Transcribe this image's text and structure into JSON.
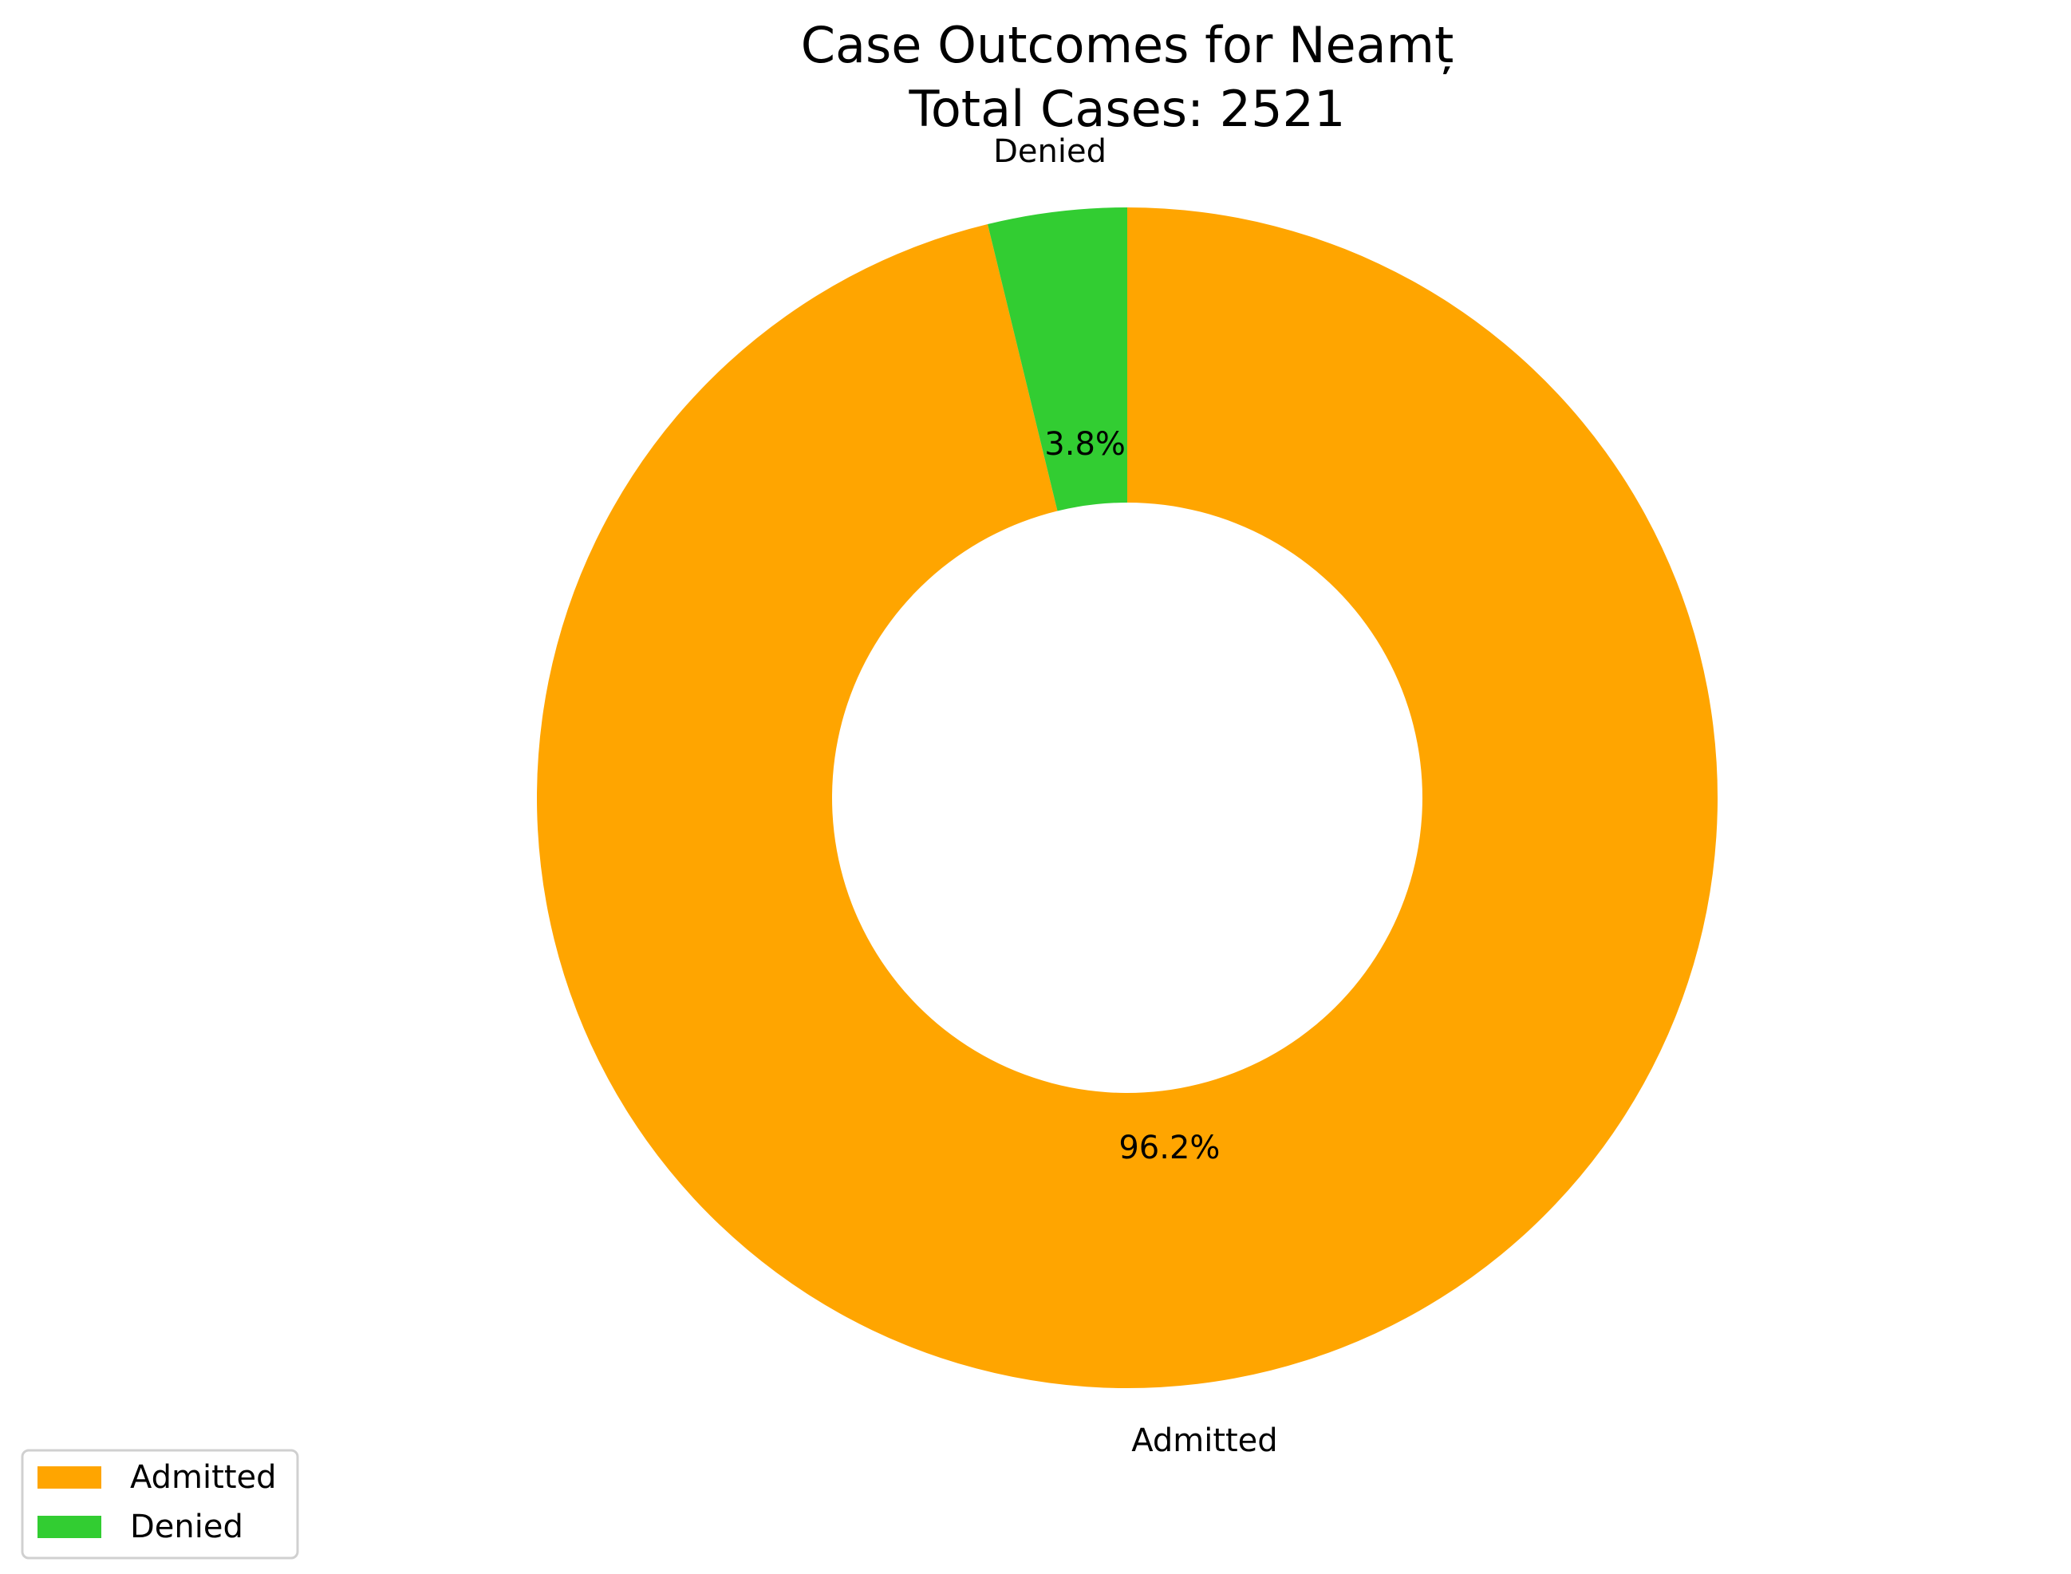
{
  "chart_data": {
    "type": "pie",
    "variant": "donut",
    "title_line1": "Case Outcomes for Neamț",
    "title_line2": "Total Cases: 2521",
    "categories": [
      "Admitted",
      "Denied"
    ],
    "values": [
      96.2,
      3.8
    ],
    "percent_labels": [
      "96.2%",
      "3.8%"
    ],
    "colors": [
      "#FFA500",
      "#32CD32"
    ],
    "start_angle_deg": 90,
    "direction": "clockwise",
    "legend": {
      "placement": "lower-left",
      "entries": [
        "Admitted",
        "Denied"
      ]
    }
  }
}
